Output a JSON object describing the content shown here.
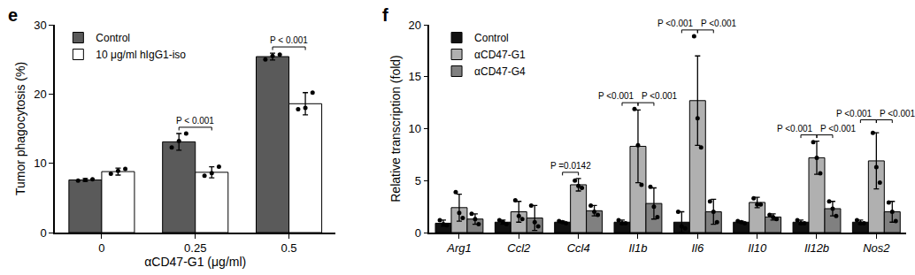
{
  "chart_data": [
    {
      "panel": "e",
      "type": "bar",
      "x_label": "αCD47-G1 (μg/ml)",
      "y_label": "Tumor phagocytosis (%)",
      "categories": [
        "0",
        "0.25",
        "0.5"
      ],
      "series": [
        {
          "name": "Control",
          "color": "#5a5a5a",
          "values": [
            7.6,
            13.1,
            25.4
          ],
          "errors": [
            0.2,
            1.2,
            0.5
          ],
          "points": [
            [
              7.5,
              7.6,
              7.7
            ],
            [
              12.3,
              13.2,
              14.3
            ],
            [
              25.0,
              25.5,
              25.7
            ]
          ]
        },
        {
          "name": "10 μg/ml hIgG1-iso",
          "color": "#ffffff",
          "values": [
            8.8,
            8.7,
            18.6
          ],
          "errors": [
            0.5,
            0.8,
            1.6
          ],
          "points": [
            [
              8.5,
              8.9,
              9.2
            ],
            [
              8.2,
              8.6,
              9.5
            ],
            [
              17.8,
              18.0,
              20.2
            ]
          ]
        }
      ],
      "ylim": [
        0,
        30
      ],
      "yticks": [
        0,
        10,
        20,
        30
      ],
      "legend": "top left",
      "grid": false,
      "annotations": [
        {
          "category": "0.25",
          "from": "Control",
          "to": "10 μg/ml hIgG1-iso",
          "text": "P < 0.001"
        },
        {
          "category": "0.5",
          "from": "Control",
          "to": "10 μg/ml hIgG1-iso",
          "text": "P < 0.001"
        }
      ]
    },
    {
      "panel": "f",
      "type": "bar",
      "y_label": "Relative transcription (fold)",
      "categories": [
        "Arg1",
        "Ccl2",
        "Ccl4",
        "Il1b",
        "Il6",
        "Il10",
        "Il12b",
        "Nos2"
      ],
      "series": [
        {
          "name": "Control",
          "color": "#111111",
          "values": [
            0.9,
            1.0,
            1.0,
            1.0,
            1.0,
            1.0,
            1.0,
            1.0
          ],
          "errors": [
            0.3,
            0.2,
            0.1,
            0.2,
            1.0,
            0.1,
            0.2,
            0.2
          ],
          "points": [
            [
              1.2,
              0.8,
              0.7
            ],
            [
              1.2,
              1.0,
              0.8
            ],
            [
              1.1,
              1.0,
              0.9
            ],
            [
              1.2,
              0.9,
              0.9
            ],
            [
              2.0,
              0.6,
              0.4
            ],
            [
              1.1,
              1.0,
              0.9
            ],
            [
              1.2,
              0.9,
              0.9
            ],
            [
              1.2,
              0.9,
              0.9
            ]
          ]
        },
        {
          "name": "αCD47-G1",
          "color": "#b0b0b0",
          "values": [
            2.4,
            2.0,
            4.6,
            8.3,
            12.7,
            2.9,
            7.2,
            6.9
          ],
          "errors": [
            1.3,
            1.0,
            0.6,
            3.5,
            4.3,
            0.5,
            1.6,
            2.7
          ],
          "points": [
            [
              3.9,
              1.9,
              1.4
            ],
            [
              3.1,
              1.6,
              1.3
            ],
            [
              5.0,
              4.5,
              4.3
            ],
            [
              11.9,
              8.4,
              4.6
            ],
            [
              18.9,
              11.0,
              8.2
            ],
            [
              3.3,
              2.7,
              2.7
            ],
            [
              8.7,
              7.2,
              5.7
            ],
            [
              9.6,
              6.3,
              4.8
            ]
          ]
        },
        {
          "name": "αCD47-G4",
          "color": "#808080",
          "values": [
            1.3,
            1.4,
            2.1,
            2.8,
            2.0,
            1.5,
            2.3,
            2.0
          ],
          "errors": [
            0.5,
            1.2,
            0.5,
            1.5,
            1.2,
            0.3,
            0.7,
            1.0
          ],
          "points": [
            [
              1.8,
              1.3,
              0.8
            ],
            [
              2.6,
              1.0,
              0.6
            ],
            [
              2.6,
              2.0,
              1.7
            ],
            [
              4.4,
              2.5,
              1.5
            ],
            [
              3.0,
              2.0,
              1.0
            ],
            [
              1.7,
              1.5,
              1.3
            ],
            [
              3.0,
              2.3,
              1.6
            ],
            [
              2.9,
              2.0,
              1.1
            ]
          ]
        }
      ],
      "ylim": [
        0,
        20
      ],
      "yticks": [
        0,
        5,
        10,
        15,
        20
      ],
      "legend": "top left",
      "grid": false,
      "annotations": [
        {
          "category": "Ccl4",
          "from": "Control",
          "to": "αCD47-G1",
          "text": "P =0.0142"
        },
        {
          "category": "Il1b",
          "from": "Control",
          "to": "αCD47-G1",
          "text": "P <0.001"
        },
        {
          "category": "Il1b",
          "from": "αCD47-G1",
          "to": "αCD47-G4",
          "text": "P <0.001"
        },
        {
          "category": "Il6",
          "from": "Control",
          "to": "αCD47-G1",
          "text": "P <0.001"
        },
        {
          "category": "Il6",
          "from": "αCD47-G1",
          "to": "αCD47-G4",
          "text": "P <0.001"
        },
        {
          "category": "Il12b",
          "from": "Control",
          "to": "αCD47-G1",
          "text": "P <0.001"
        },
        {
          "category": "Il12b",
          "from": "αCD47-G1",
          "to": "αCD47-G4",
          "text": "P <0.001"
        },
        {
          "category": "Nos2",
          "from": "Control",
          "to": "αCD47-G1",
          "text": "P <0.001"
        },
        {
          "category": "Nos2",
          "from": "αCD47-G1",
          "to": "αCD47-G4",
          "text": "P <0.001"
        }
      ]
    }
  ]
}
